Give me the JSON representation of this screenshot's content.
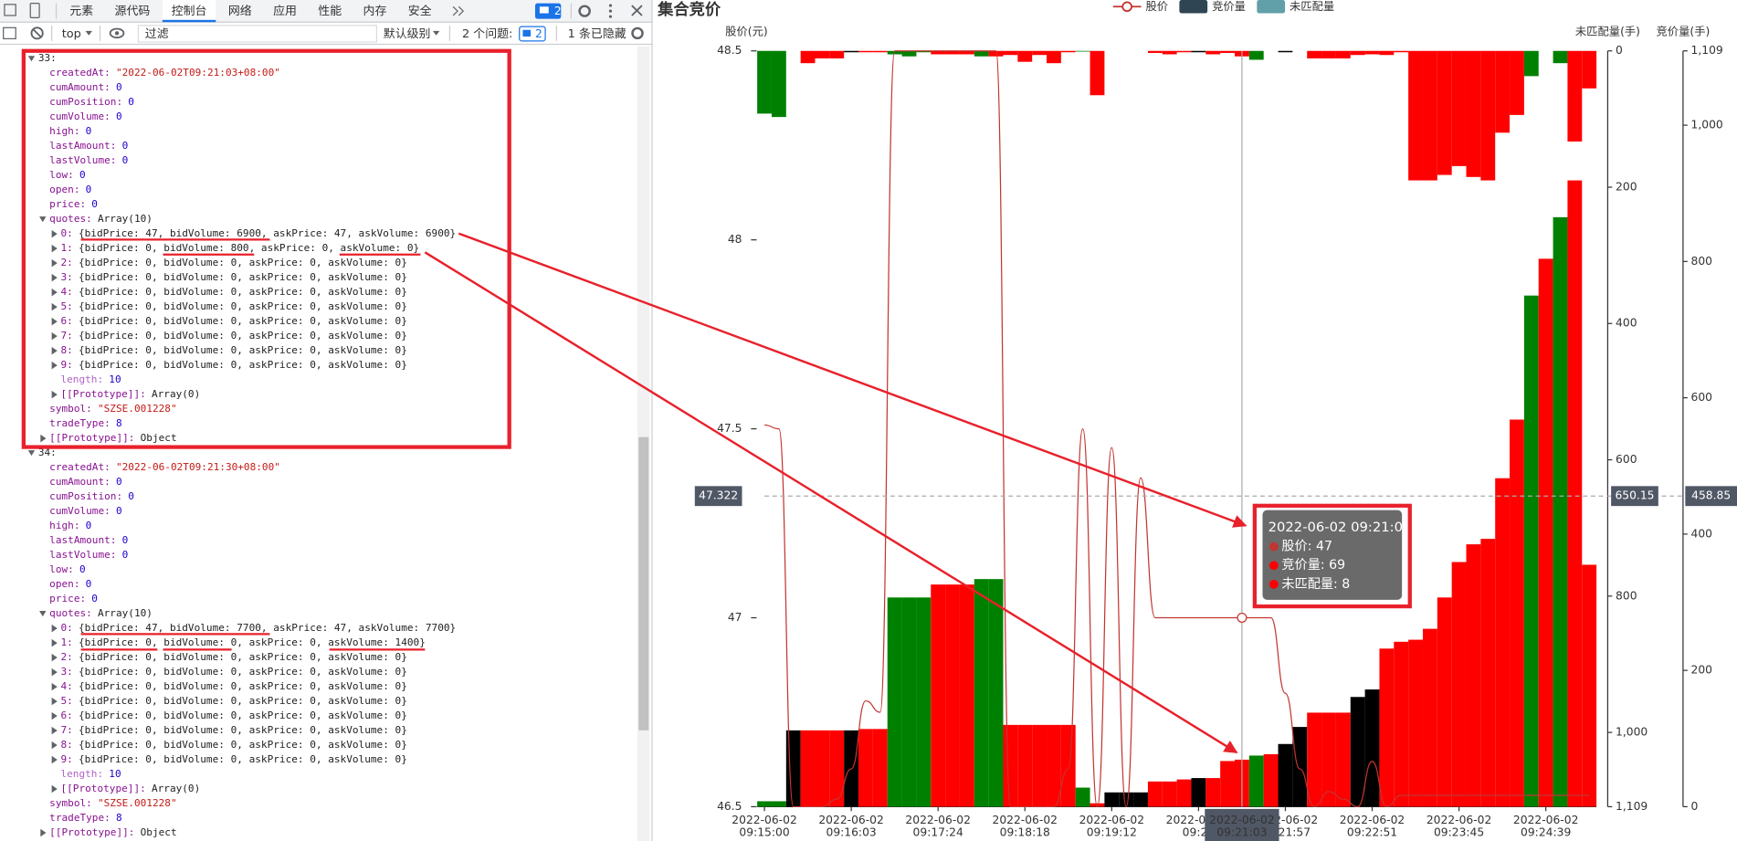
{
  "devtools": {
    "tabs": [
      "元素",
      "源代码",
      "控制台",
      "网络",
      "应用",
      "性能",
      "内存",
      "安全"
    ],
    "active_tab": 2,
    "issues_badge": "2",
    "context": "top",
    "filter_placeholder": "过滤",
    "level": "默认级别",
    "issues": "2 个问题:",
    "issues_count": "2",
    "hidden": "1 条已隐藏",
    "console": [
      {
        "key": "33:",
        "children": [
          {
            "key": "createdAt:",
            "value": "\"2022-06-02T09:21:03+08:00\""
          },
          {
            "key": "cumAmount:",
            "value": "0"
          },
          {
            "key": "cumPosition:",
            "value": "0"
          },
          {
            "key": "cumVolume:",
            "value": "0"
          },
          {
            "key": "high:",
            "value": "0"
          },
          {
            "key": "lastAmount:",
            "value": "0"
          },
          {
            "key": "lastVolume:",
            "value": "0"
          },
          {
            "key": "low:",
            "value": "0"
          },
          {
            "key": "open:",
            "value": "0"
          },
          {
            "key": "price:",
            "value": "0"
          },
          {
            "key": "quotes:",
            "value": "Array(10)",
            "children": [
              {
                "key": "0:",
                "value": "{bidPrice: 47, bidVolume: 6900, askPrice: 47, askVolume: 6900}",
                "expandable": true
              },
              {
                "key": "1:",
                "value": "{bidPrice: 0, bidVolume: 800, askPrice: 0, askVolume: 0}",
                "expandable": true
              },
              {
                "key": "2:",
                "value": "{bidPrice: 0, bidVolume: 0, askPrice: 0, askVolume: 0}",
                "expandable": true
              },
              {
                "key": "3:",
                "value": "{bidPrice: 0, bidVolume: 0, askPrice: 0, askVolume: 0}",
                "expandable": true
              },
              {
                "key": "4:",
                "value": "{bidPrice: 0, bidVolume: 0, askPrice: 0, askVolume: 0}",
                "expandable": true
              },
              {
                "key": "5:",
                "value": "{bidPrice: 0, bidVolume: 0, askPrice: 0, askVolume: 0}",
                "expandable": true
              },
              {
                "key": "6:",
                "value": "{bidPrice: 0, bidVolume: 0, askPrice: 0, askVolume: 0}",
                "expandable": true
              },
              {
                "key": "7:",
                "value": "{bidPrice: 0, bidVolume: 0, askPrice: 0, askVolume: 0}",
                "expandable": true
              },
              {
                "key": "8:",
                "value": "{bidPrice: 0, bidVolume: 0, askPrice: 0, askVolume: 0}",
                "expandable": true
              },
              {
                "key": "9:",
                "value": "{bidPrice: 0, bidVolume: 0, askPrice: 0, askVolume: 0}",
                "expandable": true
              },
              {
                "key": "length:",
                "value": "10"
              },
              {
                "key": "[[Prototype]]:",
                "value": "Array(0)",
                "expandable": true
              }
            ]
          },
          {
            "key": "symbol:",
            "value": "\"SZSE.001228\""
          },
          {
            "key": "tradeType:",
            "value": "8"
          },
          {
            "key": "[[Prototype]]:",
            "value": "Object",
            "expandable": true
          }
        ]
      },
      {
        "key": "34:",
        "children": [
          {
            "key": "createdAt:",
            "value": "\"2022-06-02T09:21:30+08:00\""
          },
          {
            "key": "cumAmount:",
            "value": "0"
          },
          {
            "key": "cumPosition:",
            "value": "0"
          },
          {
            "key": "cumVolume:",
            "value": "0"
          },
          {
            "key": "high:",
            "value": "0"
          },
          {
            "key": "lastAmount:",
            "value": "0"
          },
          {
            "key": "lastVolume:",
            "value": "0"
          },
          {
            "key": "low:",
            "value": "0"
          },
          {
            "key": "open:",
            "value": "0"
          },
          {
            "key": "price:",
            "value": "0"
          },
          {
            "key": "quotes:",
            "value": "Array(10)",
            "children": [
              {
                "key": "0:",
                "value": "{bidPrice: 47, bidVolume: 7700, askPrice: 47, askVolume: 7700}",
                "expandable": true
              },
              {
                "key": "1:",
                "value": "{bidPrice: 0, bidVolume: 0, askPrice: 0, askVolume: 1400}",
                "expandable": true
              },
              {
                "key": "2:",
                "value": "{bidPrice: 0, bidVolume: 0, askPrice: 0, askVolume: 0}",
                "expandable": true
              },
              {
                "key": "3:",
                "value": "{bidPrice: 0, bidVolume: 0, askPrice: 0, askVolume: 0}",
                "expandable": true
              },
              {
                "key": "4:",
                "value": "{bidPrice: 0, bidVolume: 0, askPrice: 0, askVolume: 0}",
                "expandable": true
              },
              {
                "key": "5:",
                "value": "{bidPrice: 0, bidVolume: 0, askPrice: 0, askVolume: 0}",
                "expandable": true
              },
              {
                "key": "6:",
                "value": "{bidPrice: 0, bidVolume: 0, askPrice: 0, askVolume: 0}",
                "expandable": true
              },
              {
                "key": "7:",
                "value": "{bidPrice: 0, bidVolume: 0, askPrice: 0, askVolume: 0}",
                "expandable": true
              },
              {
                "key": "8:",
                "value": "{bidPrice: 0, bidVolume: 0, askPrice: 0, askVolume: 0}",
                "expandable": true
              },
              {
                "key": "9:",
                "value": "{bidPrice: 0, bidVolume: 0, askPrice: 0, askVolume: 0}",
                "expandable": true
              },
              {
                "key": "length:",
                "value": "10"
              },
              {
                "key": "[[Prototype]]:",
                "value": "Array(0)",
                "expandable": true
              }
            ]
          },
          {
            "key": "symbol:",
            "value": "\"SZSE.001228\""
          },
          {
            "key": "tradeType:",
            "value": "8"
          },
          {
            "key": "[[Prototype]]:",
            "value": "Object",
            "expandable": true
          }
        ]
      }
    ]
  },
  "chart_data": {
    "type": "bar-line",
    "title": "集合竞价",
    "y_label": "股价(元)",
    "y2_label": "竞价量(手)",
    "y3_label": "未匹配量(手)",
    "categories": [
      "2022-06-02 09:15:00",
      null,
      null,
      null,
      null,
      null,
      "2022-06-02 09:16:03",
      null,
      null,
      null,
      null,
      null,
      "2022-06-02 09:17:24",
      null,
      null,
      null,
      null,
      null,
      "2022-06-02 09:18:18",
      null,
      null,
      null,
      null,
      null,
      "2022-06-02 09:19:12",
      null,
      null,
      null,
      null,
      null,
      "2022-06-02 09:20",
      null,
      null,
      null,
      null,
      null,
      "2022-06-02 09:21:57",
      null,
      null,
      null,
      null,
      null,
      "2022-06-02 09:22:51",
      null,
      null,
      null,
      null,
      null,
      "2022-06-02 09:23:45",
      null,
      null,
      null,
      null,
      null,
      "2022-06-02 09:24:39",
      null,
      null,
      null
    ],
    "ylim": [
      46.5,
      48.5
    ],
    "yticks": [
      46.5,
      47,
      47.5,
      48,
      48.5
    ],
    "y2lim": [
      0,
      1109
    ],
    "y2ticks": [
      0,
      200,
      400,
      600,
      800,
      {
        "value": 1000,
        "label": "1,000"
      },
      {
        "value": 1109,
        "label": "1,109"
      }
    ],
    "y3lim": [
      0,
      1109
    ],
    "y3_inverse": true,
    "y3ticks": [
      0,
      200,
      400,
      600,
      800,
      {
        "value": 1000,
        "label": "1,000"
      },
      {
        "value": 1109,
        "label": "1,109"
      }
    ],
    "series": [
      {
        "name": "股价",
        "type": "line",
        "color": "#c23531",
        "values": [
          47.51,
          47.5,
          46.5,
          46.5,
          46.5,
          46.52,
          46.6,
          46.78,
          46.75,
          48.5,
          48.5,
          48.5,
          48.5,
          48.5,
          48.5,
          48.5,
          48.5,
          46.5,
          46.5,
          46.5,
          46.5,
          46.6,
          47.5,
          46.5,
          47.45,
          46.5,
          47.37,
          47,
          47,
          47,
          47,
          47,
          47,
          47,
          47,
          47,
          46.8,
          46.6,
          46.5,
          46.54,
          46.52,
          46.5,
          46.62,
          46.5,
          46.53,
          46.53,
          46.53,
          46.53,
          46.53,
          46.53,
          46.53,
          46.53,
          46.53,
          46.53,
          46.53,
          46.53,
          46.53,
          46.53
        ]
      },
      {
        "name": "竞价量",
        "type": "bar",
        "axis": "y2",
        "color": "#2f4554",
        "values": [
          8,
          8,
          112,
          112,
          112,
          112,
          112,
          114,
          114,
          307,
          307,
          307,
          326,
          326,
          326,
          334,
          334,
          120,
          120,
          120,
          120,
          120,
          28,
          5,
          21,
          21,
          21,
          37,
          37,
          40,
          42,
          42,
          67,
          69,
          75,
          77,
          92,
          117,
          138,
          138,
          138,
          161,
          172,
          232,
          242,
          245,
          261,
          307,
          359,
          385,
          393,
          482,
          568,
          750,
          804,
          865,
          919,
          355
        ],
        "bar_colors": [
          "#008000",
          "#008000",
          "#000000",
          "#ff0000",
          "#ff0000",
          "#ff0000",
          "#000000",
          "#ff0000",
          "#ff0000",
          "#008000",
          "#008000",
          "#008000",
          "#ff0000",
          "#ff0000",
          "#ff0000",
          "#008000",
          "#008000",
          "#ff0000",
          "#ff0000",
          "#ff0000",
          "#ff0000",
          "#ff0000",
          "#008000",
          "#ff0000",
          "#000000",
          "#000000",
          "#000000",
          "#ff0000",
          "#ff0000",
          "#ff0000",
          "#000000",
          "#ff0000",
          "#ff0000",
          "#ff0000",
          "#008000",
          "#ff0000",
          "#000000",
          "#000000",
          "#ff0000",
          "#ff0000",
          "#ff0000",
          "#000000",
          "#000000",
          "#ff0000",
          "#ff0000",
          "#ff0000",
          "#ff0000",
          "#ff0000",
          "#ff0000",
          "#ff0000",
          "#ff0000",
          "#ff0000",
          "#ff0000",
          "#008000",
          "#ff0000",
          "#008000",
          "#ff0000",
          "#ff0000"
        ]
      },
      {
        "name": "未匹配量",
        "type": "bar",
        "axis": "y3",
        "color": "#61a0a8",
        "values": [
          92,
          97,
          0,
          18,
          11,
          11,
          2,
          2,
          2,
          5,
          8,
          2,
          5,
          5,
          5,
          8,
          8,
          6,
          16,
          6,
          18,
          2,
          1,
          65,
          0,
          0,
          0,
          3,
          5,
          2,
          2,
          5,
          3,
          8,
          13,
          0,
          2,
          0,
          11,
          11,
          11,
          6,
          5,
          6,
          2,
          190,
          190,
          182,
          169,
          185,
          190,
          120,
          94,
          37,
          0,
          18,
          133,
          55
        ],
        "bar_colors": [
          "#008000",
          "#008000",
          "#000000",
          "#ff0000",
          "#ff0000",
          "#ff0000",
          "#000000",
          "#ff0000",
          "#ff0000",
          "#008000",
          "#008000",
          "#008000",
          "#ff0000",
          "#ff0000",
          "#ff0000",
          "#008000",
          "#ff0000",
          "#ff0000",
          "#ff0000",
          "#ff0000",
          "#ff0000",
          "#ff0000",
          "#008000",
          "#ff0000",
          "#000000",
          "#000000",
          "#000000",
          "#ff0000",
          "#ff0000",
          "#ff0000",
          "#000000",
          "#ff0000",
          "#ff0000",
          "#ff0000",
          "#008000",
          "#ff0000",
          "#000000",
          "#000000",
          "#ff0000",
          "#ff0000",
          "#ff0000",
          "#ff0000",
          "#ff0000",
          "#ff0000",
          "#ff0000",
          "#ff0000",
          "#ff0000",
          "#ff0000",
          "#ff0000",
          "#ff0000",
          "#ff0000",
          "#ff0000",
          "#ff0000",
          "#008000",
          "#ff0000",
          "#008000",
          "#ff0000",
          "#ff0000"
        ]
      }
    ],
    "axis_pointer": {
      "category_index": 33,
      "y": 47.322,
      "y3": 650.15,
      "y2": 458.85
    },
    "tooltip": {
      "title": "2022-06-02 09:21:03",
      "rows": [
        "股价: 47",
        "竞价量: 69",
        "未匹配量: 8"
      ]
    }
  }
}
